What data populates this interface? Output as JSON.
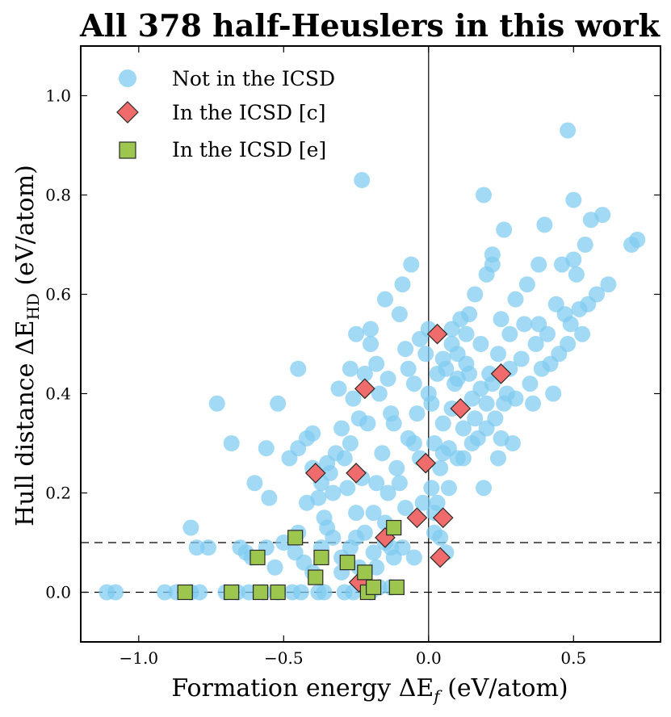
{
  "chart_data": {
    "type": "scatter",
    "title": "All 378 half-Heuslers in this work",
    "xlabel_prefix": "Formation energy ΔE",
    "xlabel_sub": "f",
    "xlabel_suffix": " (eV/atom)",
    "ylabel_prefix": "Hull distance ΔE",
    "ylabel_sub": "HD",
    "ylabel_suffix": " (eV/atom)",
    "xlim": [
      -1.2,
      0.8
    ],
    "ylim": [
      -0.1,
      1.1
    ],
    "xticks": [
      -1.0,
      -0.5,
      0.0,
      0.5
    ],
    "xtick_labels": [
      "−1.0",
      "−0.5",
      "0.0",
      "0.5"
    ],
    "yticks": [
      0.0,
      0.2,
      0.4,
      0.6,
      0.8,
      1.0
    ],
    "ytick_labels": [
      "0.0",
      "0.2",
      "0.4",
      "0.6",
      "0.8",
      "1.0"
    ],
    "reference_lines": {
      "vertical_x": 0.0,
      "horizontal_dashed_y": [
        0.0,
        0.1
      ]
    },
    "legend_position": "top-left",
    "colors": {
      "not_icsd": "#7ecbf0",
      "icsd_c": "#f06b6b",
      "icsd_e": "#9cc64e",
      "edge": "#2a2a2a"
    },
    "series": [
      {
        "name": "Not in the ICSD",
        "marker": "circle",
        "points": [
          [
            -1.11,
            0.0
          ],
          [
            -1.08,
            0.0
          ],
          [
            -0.91,
            0.0
          ],
          [
            -0.87,
            0.0
          ],
          [
            -0.82,
            0.0
          ],
          [
            -0.79,
            0.0
          ],
          [
            -0.7,
            0.0
          ],
          [
            -0.66,
            0.0
          ],
          [
            -0.62,
            0.0
          ],
          [
            -0.57,
            0.0
          ],
          [
            -0.52,
            0.0
          ],
          [
            -0.47,
            0.0
          ],
          [
            -0.44,
            0.0
          ],
          [
            -0.38,
            0.0
          ],
          [
            -0.36,
            0.0
          ],
          [
            -0.29,
            0.0
          ],
          [
            -0.26,
            0.0
          ],
          [
            -0.2,
            0.0
          ],
          [
            -0.17,
            0.01
          ],
          [
            -0.13,
            0.01
          ],
          [
            -0.82,
            0.13
          ],
          [
            -0.8,
            0.09
          ],
          [
            -0.76,
            0.09
          ],
          [
            -0.65,
            0.09
          ],
          [
            -0.63,
            0.08
          ],
          [
            -0.61,
            0.07
          ],
          [
            -0.56,
            0.09
          ],
          [
            -0.53,
            0.05
          ],
          [
            -0.5,
            0.1
          ],
          [
            -0.46,
            0.08
          ],
          [
            -0.43,
            0.06
          ],
          [
            -0.4,
            0.04
          ],
          [
            -0.37,
            0.09
          ],
          [
            -0.33,
            0.11
          ],
          [
            -0.3,
            0.07
          ],
          [
            -0.27,
            0.09
          ],
          [
            -0.25,
            0.11
          ],
          [
            -0.22,
            0.12
          ],
          [
            -0.19,
            0.08
          ],
          [
            -0.15,
            0.1
          ],
          [
            -0.12,
            0.07
          ],
          [
            -0.09,
            0.09
          ],
          [
            -0.05,
            0.07
          ],
          [
            0.02,
            0.12
          ],
          [
            0.04,
            0.11
          ],
          [
            0.06,
            0.08
          ],
          [
            -0.3,
            0.04
          ],
          [
            -0.24,
            0.05
          ],
          [
            -0.18,
            0.05
          ],
          [
            -0.13,
            0.09
          ],
          [
            -0.73,
            0.38
          ],
          [
            -0.68,
            0.3
          ],
          [
            -0.6,
            0.22
          ],
          [
            -0.56,
            0.29
          ],
          [
            -0.52,
            0.38
          ],
          [
            -0.48,
            0.27
          ],
          [
            -0.45,
            0.29
          ],
          [
            -0.42,
            0.18
          ],
          [
            -0.4,
            0.32
          ],
          [
            -0.37,
            0.22
          ],
          [
            -0.35,
            0.26
          ],
          [
            -0.33,
            0.2
          ],
          [
            -0.31,
            0.41
          ],
          [
            -0.29,
            0.27
          ],
          [
            -0.27,
            0.3
          ],
          [
            -0.25,
            0.52
          ],
          [
            -0.24,
            0.35
          ],
          [
            -0.22,
            0.44
          ],
          [
            -0.2,
            0.53
          ],
          [
            -0.18,
            0.46
          ],
          [
            -0.16,
            0.28
          ],
          [
            -0.15,
            0.59
          ],
          [
            -0.13,
            0.36
          ],
          [
            -0.11,
            0.25
          ],
          [
            -0.09,
            0.62
          ],
          [
            -0.08,
            0.49
          ],
          [
            -0.06,
            0.66
          ],
          [
            -0.05,
            0.42
          ],
          [
            -0.03,
            0.27
          ],
          [
            -0.02,
            0.18
          ],
          [
            -0.01,
            0.48
          ],
          [
            0.0,
            0.53
          ],
          [
            0.01,
            0.38
          ],
          [
            0.02,
            0.3
          ],
          [
            0.03,
            0.44
          ],
          [
            0.04,
            0.25
          ],
          [
            0.05,
            0.34
          ],
          [
            0.06,
            0.45
          ],
          [
            0.07,
            0.29
          ],
          [
            0.08,
            0.37
          ],
          [
            0.09,
            0.42
          ],
          [
            0.1,
            0.27
          ],
          [
            0.11,
            0.55
          ],
          [
            0.12,
            0.33
          ],
          [
            0.13,
            0.46
          ],
          [
            0.14,
            0.56
          ],
          [
            0.15,
            0.39
          ],
          [
            0.16,
            0.6
          ],
          [
            0.17,
            0.31
          ],
          [
            0.18,
            0.5
          ],
          [
            0.19,
            0.21
          ],
          [
            0.2,
            0.64
          ],
          [
            0.21,
            0.44
          ],
          [
            0.22,
            0.68
          ],
          [
            0.23,
            0.35
          ],
          [
            0.24,
            0.48
          ],
          [
            0.25,
            0.55
          ],
          [
            0.26,
            0.73
          ],
          [
            0.27,
            0.4
          ],
          [
            0.28,
            0.52
          ],
          [
            0.29,
            0.3
          ],
          [
            0.3,
            0.59
          ],
          [
            0.32,
            0.47
          ],
          [
            0.34,
            0.62
          ],
          [
            0.36,
            0.38
          ],
          [
            0.38,
            0.54
          ],
          [
            0.4,
            0.74
          ],
          [
            0.42,
            0.46
          ],
          [
            0.44,
            0.58
          ],
          [
            0.46,
            0.66
          ],
          [
            0.48,
            0.5
          ],
          [
            0.5,
            0.79
          ],
          [
            0.52,
            0.57
          ],
          [
            0.54,
            0.7
          ],
          [
            0.56,
            0.75
          ],
          [
            0.58,
            0.6
          ],
          [
            0.6,
            0.76
          ],
          [
            0.62,
            0.62
          ],
          [
            0.7,
            0.7
          ],
          [
            0.72,
            0.71
          ],
          [
            -0.45,
            0.45
          ],
          [
            -0.42,
            0.31
          ],
          [
            -0.38,
            0.19
          ],
          [
            -0.36,
            0.15
          ],
          [
            -0.34,
            0.24
          ],
          [
            -0.3,
            0.33
          ],
          [
            -0.28,
            0.21
          ],
          [
            -0.26,
            0.39
          ],
          [
            -0.23,
            0.23
          ],
          [
            -0.21,
            0.34
          ],
          [
            -0.19,
            0.16
          ],
          [
            -0.17,
            0.4
          ],
          [
            -0.14,
            0.2
          ],
          [
            -0.12,
            0.34
          ],
          [
            -0.1,
            0.22
          ],
          [
            -0.07,
            0.31
          ],
          [
            -0.04,
            0.36
          ],
          [
            -0.03,
            0.51
          ],
          [
            0.01,
            0.21
          ],
          [
            0.03,
            0.18
          ],
          [
            0.05,
            0.28
          ],
          [
            0.07,
            0.21
          ],
          [
            0.08,
            0.5
          ],
          [
            0.1,
            0.43
          ],
          [
            0.12,
            0.27
          ],
          [
            0.14,
            0.44
          ],
          [
            0.16,
            0.35
          ],
          [
            0.18,
            0.41
          ],
          [
            0.2,
            0.33
          ],
          [
            0.22,
            0.42
          ],
          [
            0.24,
            0.27
          ],
          [
            0.26,
            0.38
          ],
          [
            0.28,
            0.45
          ],
          [
            0.3,
            0.39
          ],
          [
            0.33,
            0.54
          ],
          [
            0.35,
            0.42
          ],
          [
            0.37,
            0.5
          ],
          [
            0.39,
            0.45
          ],
          [
            0.41,
            0.52
          ],
          [
            0.43,
            0.4
          ],
          [
            0.45,
            0.48
          ],
          [
            0.47,
            0.56
          ],
          [
            0.49,
            0.54
          ],
          [
            0.51,
            0.64
          ],
          [
            0.53,
            0.52
          ],
          [
            0.55,
            0.58
          ],
          [
            -0.23,
            0.83
          ],
          [
            0.19,
            0.8
          ],
          [
            0.48,
            0.93
          ],
          [
            0.5,
            0.67
          ],
          [
            0.38,
            0.66
          ],
          [
            0.22,
            0.66
          ],
          [
            0.08,
            0.53
          ],
          [
            -0.1,
            0.56
          ],
          [
            -0.2,
            0.5
          ],
          [
            -0.27,
            0.45
          ],
          [
            -0.14,
            0.43
          ],
          [
            -0.07,
            0.45
          ],
          [
            0.1,
            0.48
          ],
          [
            0.15,
            0.3
          ],
          [
            0.2,
            0.38
          ],
          [
            0.25,
            0.31
          ],
          [
            -0.05,
            0.3
          ],
          [
            0.0,
            0.4
          ],
          [
            -0.35,
            0.13
          ],
          [
            -0.55,
            0.19
          ],
          [
            -0.25,
            0.16
          ],
          [
            -0.15,
            0.14
          ],
          [
            -0.08,
            0.17
          ],
          [
            0.02,
            0.16
          ],
          [
            -0.45,
            0.12
          ],
          [
            -0.4,
            0.25
          ],
          [
            -0.32,
            0.28
          ],
          [
            -0.18,
            0.22
          ],
          [
            0.05,
            0.47
          ],
          [
            0.13,
            0.52
          ]
        ]
      },
      {
        "name": "In the ICSD [c]",
        "marker": "diamond",
        "points": [
          [
            -0.24,
            0.02
          ],
          [
            0.04,
            0.07
          ],
          [
            -0.15,
            0.11
          ],
          [
            -0.04,
            0.15
          ],
          [
            0.05,
            0.15
          ],
          [
            -0.39,
            0.24
          ],
          [
            -0.25,
            0.24
          ],
          [
            -0.01,
            0.26
          ],
          [
            0.11,
            0.37
          ],
          [
            -0.22,
            0.41
          ],
          [
            0.25,
            0.44
          ],
          [
            0.03,
            0.52
          ]
        ]
      },
      {
        "name": "In the ICSD [e]",
        "marker": "square",
        "points": [
          [
            -0.84,
            0.0
          ],
          [
            -0.68,
            0.0
          ],
          [
            -0.58,
            0.0
          ],
          [
            -0.52,
            0.0
          ],
          [
            -0.21,
            0.0
          ],
          [
            -0.19,
            0.01
          ],
          [
            -0.11,
            0.01
          ],
          [
            -0.39,
            0.03
          ],
          [
            -0.22,
            0.04
          ],
          [
            -0.28,
            0.06
          ],
          [
            -0.59,
            0.07
          ],
          [
            -0.37,
            0.07
          ],
          [
            -0.46,
            0.11
          ],
          [
            -0.12,
            0.13
          ]
        ]
      }
    ]
  }
}
